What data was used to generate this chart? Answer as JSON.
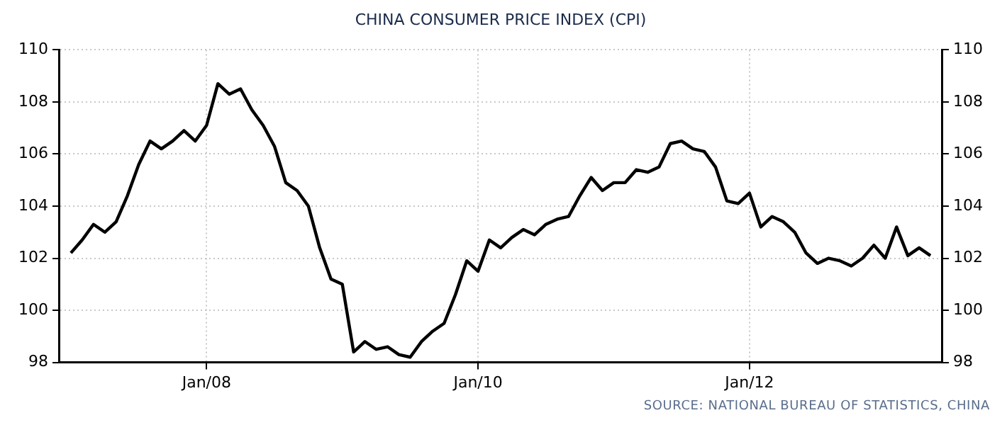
{
  "chart_data": {
    "type": "line",
    "title": "CHINA CONSUMER PRICE INDEX (CPI)",
    "x": [
      "2007-01",
      "2007-02",
      "2007-03",
      "2007-04",
      "2007-05",
      "2007-06",
      "2007-07",
      "2007-08",
      "2007-09",
      "2007-10",
      "2007-11",
      "2007-12",
      "2008-01",
      "2008-02",
      "2008-03",
      "2008-04",
      "2008-05",
      "2008-06",
      "2008-07",
      "2008-08",
      "2008-09",
      "2008-10",
      "2008-11",
      "2008-12",
      "2009-01",
      "2009-02",
      "2009-03",
      "2009-04",
      "2009-05",
      "2009-06",
      "2009-07",
      "2009-08",
      "2009-09",
      "2009-10",
      "2009-11",
      "2009-12",
      "2010-01",
      "2010-02",
      "2010-03",
      "2010-04",
      "2010-05",
      "2010-06",
      "2010-07",
      "2010-08",
      "2010-09",
      "2010-10",
      "2010-11",
      "2010-12",
      "2011-01",
      "2011-02",
      "2011-03",
      "2011-04",
      "2011-05",
      "2011-06",
      "2011-07",
      "2011-08",
      "2011-09",
      "2011-10",
      "2011-11",
      "2011-12",
      "2012-01",
      "2012-02",
      "2012-03",
      "2012-04",
      "2012-05",
      "2012-06",
      "2012-07",
      "2012-08",
      "2012-09",
      "2012-10",
      "2012-11",
      "2012-12",
      "2013-01",
      "2013-02",
      "2013-03",
      "2013-04",
      "2013-05"
    ],
    "series": [
      {
        "color": "#000000",
        "values": [
          102.2,
          102.7,
          103.3,
          103.0,
          103.4,
          104.4,
          105.6,
          106.5,
          106.2,
          106.5,
          106.9,
          106.5,
          107.1,
          108.7,
          108.3,
          108.5,
          107.7,
          107.1,
          106.3,
          104.9,
          104.6,
          104.0,
          102.4,
          101.2,
          101.0,
          98.4,
          98.8,
          98.5,
          98.6,
          98.3,
          98.2,
          98.8,
          99.2,
          99.5,
          100.6,
          101.9,
          101.5,
          102.7,
          102.4,
          102.8,
          103.1,
          102.9,
          103.3,
          103.5,
          103.6,
          104.4,
          105.1,
          104.6,
          104.9,
          104.9,
          105.4,
          105.3,
          105.5,
          106.4,
          106.5,
          106.2,
          106.1,
          105.5,
          104.2,
          104.1,
          104.5,
          103.2,
          103.6,
          103.4,
          103.0,
          102.2,
          101.8,
          102.0,
          101.9,
          101.7,
          102.0,
          102.5,
          102.0,
          103.2,
          102.1,
          102.4,
          102.1
        ]
      }
    ],
    "xlim": [
      "2006-12",
      "2013-06"
    ],
    "xticks": [
      {
        "value": "2008-01",
        "label": "Jan/08"
      },
      {
        "value": "2010-01",
        "label": "Jan/10"
      },
      {
        "value": "2012-01",
        "label": "Jan/12"
      }
    ],
    "ylim": [
      98,
      110
    ],
    "yticks": [
      98,
      100,
      102,
      104,
      106,
      108,
      110
    ],
    "y2lim": [
      98,
      110
    ],
    "y2ticks": [
      98,
      100,
      102,
      104,
      106,
      108,
      110
    ],
    "grid": true,
    "legend": false,
    "marker": "none",
    "line_style": "solid",
    "annotations": [
      "SOURCE: NATIONAL BUREAU OF STATISTICS, CHINA"
    ]
  }
}
